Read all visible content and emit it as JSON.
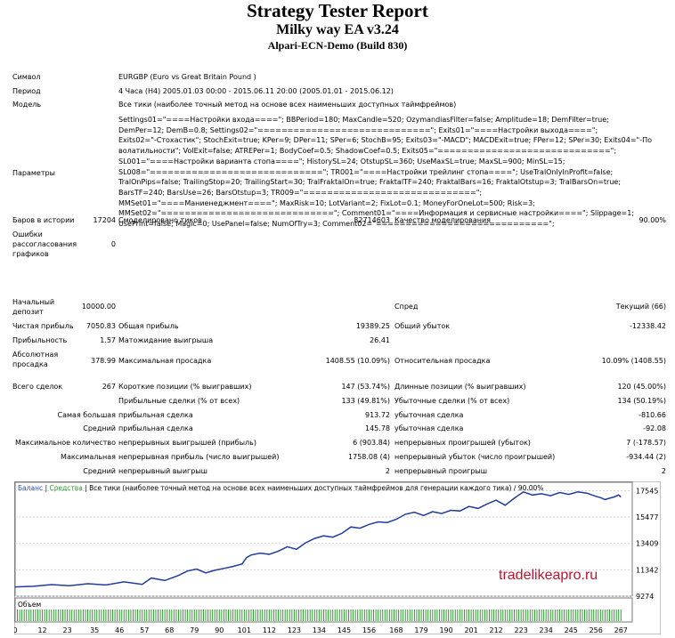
{
  "header": {
    "title": "Strategy Tester Report",
    "subtitle": "Milky way EA v3.24",
    "server": "Alpari-ECN-Demo (Build 830)"
  },
  "info": {
    "symbol_label": "Символ",
    "symbol_value": "EURGBP (Euro vs Great Britain Pound )",
    "period_label": "Период",
    "period_value": "4 Часа (H4) 2005.01.03 00:00 - 2015.06.11 20:00 (2005.01.01 - 2015.06.12)",
    "model_label": "Модель",
    "model_value": "Все тики (наиболее точный метод на основе всех наименьших доступных таймфреймов)",
    "params_label": "Параметры",
    "params_lines": [
      "Settings01=\"====Настройки входа====\"; BBPeriod=180; MaxCandle=520; OzymandiasFilter=false; Amplitude=18; DemFilter=true;",
      "DemPer=12; DemB=0.8; Settings02=\"=============================\"; Exits01=\"====Настройки выхода====\";",
      "Exits02=\"-Стохастик\"; StochExit=true; KPer=9; DPer=11; SPer=6; StochB=95; Exits03=\"-MACD\"; MACDExit=true; FPer=12; SPer=30; Exits04=\"-По",
      "волатильности\"; VolExit=false; ATREPer=1; BodyCoef=0.5; ShadowCoef=0.5; Exits05=\"=============================\";",
      "SL001=\"====Настройки варианта стопа====\"; HistorySL=24; OtstupSL=360; UseMaxSL=true; MaxSL=900; MinSL=15;",
      "SL008=\"=============================\"; TR001=\"====Настройки трейлинг стопа====\"; UseTralOnlyInProfit=false;",
      "TralOnPips=false; TrailingStop=20; TrailingStart=30; TralFraktalOn=true; FraktalTF=240; FraktalBars=16; FraktalOtstup=3; TralBarsOn=true;",
      "BarsTF=240; BarsUse=26; BarsOtstup=3; TR009=\"=============================\";",
      "MMSet01=\"====Маниенеджмент====\"; MaxRisk=10; LotVariant=2; FixLot=0.1; MoneyForOneLot=500; Risk=3;",
      "MMSet02=\"=============================\"; Comment01=\"====Информация и сервисные настройки====\"; Slippage=1;",
      "UsePrint=false; Magic=0; UsePanel=false; NumOfTry=3; Comment02=\"=============================\";"
    ]
  },
  "stats": {
    "bars_label": "Баров в истории",
    "bars_value": "17204",
    "ticks_label": "Смоделировано тиков",
    "ticks_value": "82714603",
    "quality_label": "Качество моделирования",
    "quality_value": "90.00%",
    "errors_label": [
      "Ошибки",
      "рассогласования",
      "графиков"
    ],
    "errors_value": "0",
    "deposit_label": [
      "Начальный",
      "депозит"
    ],
    "deposit_value": "10000.00",
    "spread_label": "Спред",
    "spread_value": "Текущий (66)",
    "net_label": "Чистая прибыль",
    "net_value": "7050.83",
    "gross_profit_label": "Общая прибыль",
    "gross_profit_value": "19389.25",
    "gross_loss_label": "Общий убыток",
    "gross_loss_value": "-12338.42",
    "pf_label": "Прибыльность",
    "pf_value": "1.57",
    "payoff_label": "Матожидание выигрыша",
    "payoff_value": "26.41",
    "abs_dd_label": [
      "Абсолютная",
      "просадка"
    ],
    "abs_dd_value": "378.99",
    "max_dd_label": "Максимальная просадка",
    "max_dd_value": "1408.55 (10.09%)",
    "rel_dd_label": "Относительная просадка",
    "rel_dd_value": "10.09% (1408.55)",
    "total_label": "Всего сделок",
    "total_value": "267",
    "short_label": "Короткие позиции (% выигравших)",
    "short_value": "147 (53.74%)",
    "long_label": "Длинные позиции (% выигравших)",
    "long_value": "120 (45.00%)",
    "profit_trades_label": "Прибыльные сделки (% от всех)",
    "profit_trades_value": "133 (49.81%)",
    "loss_trades_label": "Убыточные сделки (% от всех)",
    "loss_trades_value": "134 (50.19%)",
    "largest_label": "Самая большая",
    "largest_profit_label": "прибыльная сделка",
    "largest_profit_value": "913.72",
    "largest_loss_label": "убыточная сделка",
    "largest_loss_value": "-810.66",
    "avg_label": "Средний",
    "avg_profit_label": "прибыльная сделка",
    "avg_profit_value": "145.78",
    "avg_loss_label": "убыточная сделка",
    "avg_loss_value": "-92.08",
    "maxcount_label": "Максимальное количество",
    "maxcount_win_label": "непрерывных выигрышей (прибыль)",
    "maxcount_win_value": "6 (903.84)",
    "maxcount_loss_label": "непрерывных проигрышей (убыток)",
    "maxcount_loss_value": "7 (-178.57)",
    "maximal_label": "Максимальная",
    "maximal_win_label": "непрерывная прибыль (число выигрышей)",
    "maximal_win_value": "1758.08 (4)",
    "maximal_loss_label": "непрерывный убыток (число проигрышей)",
    "maximal_loss_value": "-934.44 (2)",
    "avgcons_label": "Средний",
    "avgcons_win_label": "непрерывный выигрыш",
    "avgcons_win_value": "2",
    "avgcons_loss_label": "непрерывный проигрыш",
    "avgcons_loss_value": "2"
  },
  "watermark": "tradelikeapro.ru",
  "chart_data": {
    "type": "line",
    "legend": [
      {
        "text": "Баланс",
        "color": "#2e4fb5"
      },
      {
        "text": "Средства",
        "color": "#2e9a2e"
      },
      {
        "text": "Все тики (наиболее точный метод на основе всех наименьших доступных таймфреймов для генерации каждого тика)",
        "color": "#000000"
      },
      {
        "text": "90.00%",
        "color": "#000000"
      }
    ],
    "yticks": [
      17545,
      15477,
      13409,
      11342,
      9274
    ],
    "xticks": [
      0,
      12,
      23,
      35,
      46,
      57,
      68,
      79,
      90,
      101,
      112,
      123,
      134,
      145,
      156,
      168,
      179,
      190,
      201,
      212,
      223,
      234,
      245,
      256,
      267
    ],
    "ylim": [
      9274,
      18200
    ],
    "xlim": [
      0,
      272
    ],
    "series": [
      {
        "name": "Баланс",
        "color": "#1f3c9e",
        "x": [
          0,
          8,
          16,
          24,
          32,
          40,
          48,
          56,
          60,
          66,
          72,
          76,
          80,
          84,
          88,
          92,
          96,
          100,
          102,
          104,
          108,
          112,
          116,
          120,
          124,
          128,
          132,
          136,
          140,
          144,
          148,
          152,
          156,
          160,
          164,
          168,
          172,
          176,
          180,
          184,
          188,
          192,
          196,
          200,
          204,
          208,
          212,
          216,
          220,
          224,
          228,
          232,
          236,
          240,
          244,
          248,
          252,
          256,
          258,
          260,
          262,
          264,
          266,
          267
        ],
        "y": [
          10000,
          10050,
          10180,
          10100,
          10250,
          10150,
          10400,
          10200,
          10700,
          10500,
          10900,
          11250,
          11400,
          11100,
          11300,
          11450,
          11600,
          11800,
          12300,
          12500,
          12650,
          12550,
          12800,
          13150,
          12950,
          13450,
          13800,
          14000,
          13900,
          14200,
          14700,
          14600,
          14900,
          15100,
          15050,
          15300,
          15700,
          15850,
          15600,
          15900,
          15750,
          16000,
          15950,
          16300,
          16150,
          16500,
          16800,
          16400,
          16950,
          17450,
          17200,
          17300,
          17150,
          17400,
          17250,
          17450,
          17350,
          17100,
          17000,
          16850,
          16950,
          17050,
          17200,
          17050
        ]
      }
    ],
    "volume_label": "Объем",
    "volume_bars": 267
  }
}
